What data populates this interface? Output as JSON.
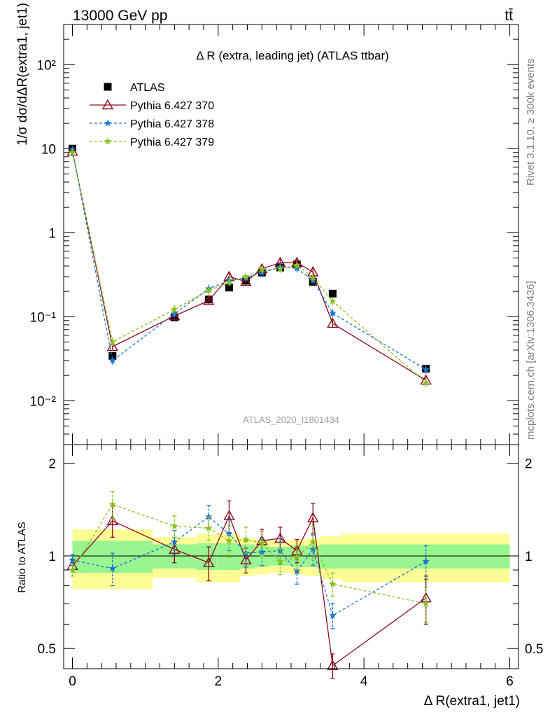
{
  "header": {
    "left": "13000 GeV pp",
    "right": "tt̄"
  },
  "side_labels": {
    "rivet": "Rivet 3.1.10, ≥ 300k events",
    "mcplots": "mcplots.cern.ch [arXiv:1306.3436]"
  },
  "chart_data": [
    {
      "type": "line",
      "panel": "main",
      "title": "Δ R (extra, leading jet) (ATLAS ttbar)",
      "watermark": "ATLAS_2020_I1801434",
      "ylabel": "1/σ dσ/dΔR(extra1, jet1)",
      "yscale": "log",
      "ylim": [
        0.003,
        300
      ],
      "xlim": [
        -0.12,
        6.12
      ],
      "y_tick_labels": [
        "10⁻²",
        "10⁻¹",
        "1",
        "10",
        "10²"
      ],
      "x": [
        0.0,
        0.55,
        1.4,
        1.87,
        2.15,
        2.38,
        2.6,
        2.85,
        3.08,
        3.3,
        3.57,
        4.85
      ],
      "series": [
        {
          "name": "ATLAS",
          "color": "#000000",
          "marker": "square",
          "values": [
            10.0,
            0.034,
            0.098,
            0.16,
            0.222,
            0.268,
            0.335,
            0.385,
            0.418,
            0.26,
            0.188,
            0.024
          ]
        },
        {
          "name": "Pythia 6.427 370",
          "color": "#8b0a1e",
          "marker": "open-triangle",
          "values": [
            9.3,
            0.044,
            0.102,
            0.155,
            0.3,
            0.262,
            0.37,
            0.44,
            0.44,
            0.34,
            0.083,
            0.0175
          ]
        },
        {
          "name": "Pythia 6.427 378",
          "color": "#1a75d1",
          "marker": "star",
          "values": [
            9.7,
            0.03,
            0.108,
            0.215,
            0.268,
            0.29,
            0.335,
            0.39,
            0.375,
            0.27,
            0.11,
            0.0235
          ]
        },
        {
          "name": "Pythia 6.427 379",
          "color": "#88c21b",
          "marker": "star",
          "values": [
            9.0,
            0.05,
            0.122,
            0.205,
            0.255,
            0.3,
            0.365,
            0.37,
            0.41,
            0.29,
            0.153,
            0.0163
          ]
        }
      ]
    },
    {
      "type": "line",
      "panel": "ratio",
      "xlabel": "Δ R(extra1, jet1)",
      "ylabel": "Ratio to ATLAS",
      "yscale": "log",
      "ylim": [
        0.43,
        2.3
      ],
      "xlim": [
        -0.12,
        6.12
      ],
      "x_tick_labels": [
        "0",
        "2",
        "4",
        "6"
      ],
      "y_tick_labels": [
        "0.5",
        "1",
        "2"
      ],
      "x": [
        0.0,
        0.55,
        1.4,
        1.87,
        2.15,
        2.38,
        2.6,
        2.85,
        3.08,
        3.3,
        3.57,
        4.85
      ],
      "band_edges": [
        0.0,
        0.1,
        1.1,
        1.7,
        1.98,
        2.3,
        2.5,
        2.7,
        3.0,
        3.2,
        3.4,
        3.7,
        6.0
      ],
      "band_inner": [
        0.12,
        0.12,
        0.09,
        0.1,
        0.1,
        0.09,
        0.08,
        0.07,
        0.08,
        0.08,
        0.09,
        0.09
      ],
      "band_outer": [
        0.22,
        0.22,
        0.15,
        0.18,
        0.18,
        0.14,
        0.13,
        0.12,
        0.13,
        0.14,
        0.16,
        0.18
      ],
      "series": [
        {
          "name": "Pythia 6.427 370",
          "color": "#8b0a1e",
          "marker": "open-triangle",
          "values": [
            0.93,
            1.3,
            1.05,
            0.95,
            1.35,
            0.97,
            1.12,
            1.14,
            1.04,
            1.33,
            0.44,
            0.73
          ],
          "errors": [
            0.04,
            0.15,
            0.1,
            0.12,
            0.16,
            0.09,
            0.1,
            0.1,
            0.09,
            0.15,
            0.04,
            0.13
          ]
        },
        {
          "name": "Pythia 6.427 378",
          "color": "#1a75d1",
          "marker": "star",
          "values": [
            0.97,
            0.91,
            1.11,
            1.34,
            1.18,
            1.02,
            1.03,
            1.04,
            0.89,
            1.05,
            0.64,
            0.96
          ],
          "errors": [
            0.04,
            0.11,
            0.1,
            0.12,
            0.14,
            0.1,
            0.1,
            0.1,
            0.08,
            0.12,
            0.06,
            0.12
          ]
        },
        {
          "name": "Pythia 6.427 379",
          "color": "#88c21b",
          "marker": "star",
          "values": [
            0.9,
            1.47,
            1.25,
            1.23,
            1.12,
            1.13,
            1.1,
            0.96,
            0.99,
            1.11,
            0.81,
            0.7
          ],
          "errors": [
            0.04,
            0.15,
            0.1,
            0.11,
            0.13,
            0.11,
            0.1,
            0.09,
            0.09,
            0.14,
            0.07,
            0.09
          ]
        }
      ]
    }
  ]
}
